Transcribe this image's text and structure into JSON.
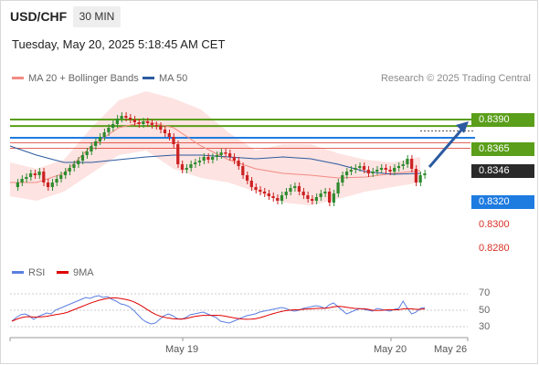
{
  "header": {
    "symbol": "USD/CHF",
    "timeframe": "30 MIN"
  },
  "datetime": "Tuesday, May 20, 2025 5:18:45 AM CET",
  "legend": {
    "bollinger": {
      "label": "MA 20 + Bollinger Bands",
      "color": "#f28b82"
    },
    "ma50": {
      "label": "MA 50",
      "color": "#2c5aa0"
    }
  },
  "research": "Research © 2025 Trading Central",
  "levels": [
    {
      "value": "0.8390",
      "style": "box",
      "color": "#5a9e1a"
    },
    {
      "value": "0.8365",
      "style": "box",
      "color": "#5a9e1a"
    },
    {
      "value": "0.8346",
      "style": "box",
      "color": "#2a2a2a"
    },
    {
      "value": "0.8320",
      "style": "box",
      "color": "#1e7be0"
    },
    {
      "value": "0.8300",
      "style": "plain",
      "color": "#d93025"
    },
    {
      "value": "0.8280",
      "style": "plain",
      "color": "#d93025"
    }
  ],
  "rsi": {
    "legend": {
      "rsi_label": "RSI",
      "ma_label": "9MA",
      "rsi_color": "#5b7fe0",
      "ma_color": "#e00000"
    },
    "ticks": [
      "70",
      "50",
      "30"
    ]
  },
  "xaxis": {
    "labels": [
      "May 19",
      "May 20",
      "May 26"
    ]
  },
  "colors": {
    "bull": "#2e8b2e",
    "bear": "#cc2222",
    "arrow": "#2c5aa0"
  }
}
